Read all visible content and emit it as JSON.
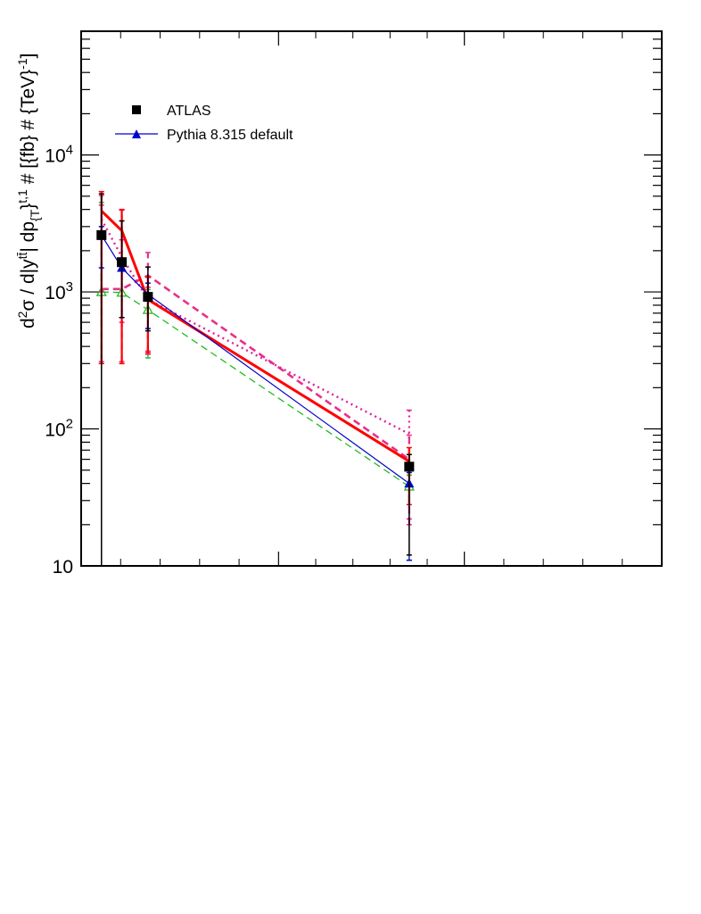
{
  "chart_data": {
    "type": "line",
    "title": "",
    "xlabel": "",
    "ylabel": "d^{2}σ / d|y^{tt̄}| dp_{T}^{t,1} # [{fb} # {TeV}^{-1}]",
    "ylabel_parts": {
      "main": "d",
      "sup1": "2",
      "mid": "σ / d|y",
      "sup2": "tt̄",
      "mid2": "| dp",
      "sub1": "{T",
      "mid3": "}",
      "sup3": "t,1",
      "tail": " # [{fb} # {TeV}",
      "sup4": "-1",
      "end": "]"
    },
    "y_scale": "log",
    "ylim": [
      10,
      80000
    ],
    "xlim": [
      0,
      1
    ],
    "grid": false,
    "legend_position": "top-left",
    "y_tick_labels": [
      {
        "value": 10,
        "base": "10",
        "exp": ""
      },
      {
        "value": 100,
        "base": "10",
        "exp": "2"
      },
      {
        "value": 1000,
        "base": "10",
        "exp": "3"
      },
      {
        "value": 10000,
        "base": "10",
        "exp": "4"
      }
    ],
    "x_major_ticks": [
      0,
      0.34,
      0.66,
      1.0
    ],
    "x": [
      0.035,
      0.07,
      0.115,
      0.565
    ],
    "series": [
      {
        "name": "ATLAS",
        "style": "markers",
        "marker": "square",
        "color": "#000000",
        "values": [
          2600,
          1650,
          920,
          53
        ],
        "err_low": [
          2600,
          1000,
          400,
          41
        ],
        "err_high": [
          2600,
          1650,
          600,
          12
        ]
      },
      {
        "name": "Pythia 8.315 default",
        "style": "solid",
        "marker": "triangle",
        "color": "#0000cc",
        "width": 1.2,
        "values": [
          2600,
          1500,
          960,
          40
        ],
        "err_low": [
          1100,
          850,
          420,
          29
        ],
        "err_high": [
          400,
          200,
          200,
          8
        ]
      },
      {
        "style": "solid",
        "marker": "none",
        "color": "#ff0000",
        "width": 3,
        "values": [
          3900,
          2800,
          880,
          58
        ],
        "err_low": [
          3600,
          2500,
          520,
          30
        ],
        "err_high": [
          1500,
          1200,
          400,
          15
        ]
      },
      {
        "style": "dashed",
        "marker": "open-triangle",
        "color": "#22bb22",
        "width": 1.3,
        "values": [
          1000,
          990,
          740,
          38
        ],
        "err_low": [
          700,
          690,
          410,
          27
        ],
        "err_high": [
          3500,
          500,
          300,
          8
        ]
      },
      {
        "style": "dashed",
        "marker": "none",
        "color": "#e8308a",
        "width": 2.6,
        "values": [
          1050,
          1050,
          1320,
          60
        ],
        "err_low": [
          740,
          740,
          950,
          40
        ],
        "err_high": [
          4000,
          2900,
          620,
          30
        ]
      },
      {
        "style": "dotted",
        "marker": "none",
        "color": "#e0209a",
        "width": 2.4,
        "values": [
          3400,
          1800,
          880,
          92
        ],
        "err_low": [
          2400,
          1200,
          530,
          70
        ],
        "err_high": [
          900,
          600,
          200,
          45
        ]
      }
    ]
  }
}
